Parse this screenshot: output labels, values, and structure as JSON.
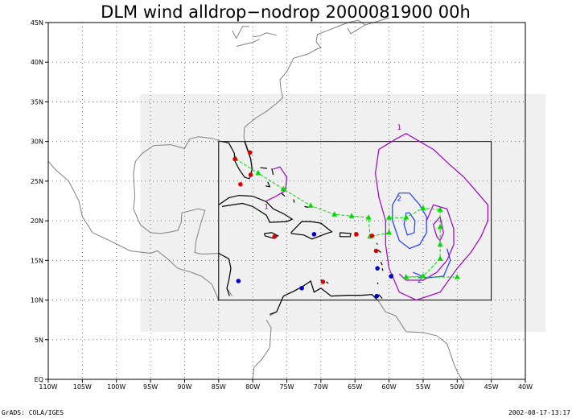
{
  "title": "DLM wind alldrop−nodrop 2000081900 00h",
  "footer": {
    "left": "GrADS: COLA/IGES",
    "right": "2002-08-17-13:17"
  },
  "axes": {
    "lon_range": [
      -110,
      -40
    ],
    "lat_range": [
      0,
      45
    ],
    "x_ticks": [
      "110W",
      "105W",
      "100W",
      "95W",
      "90W",
      "85W",
      "80W",
      "75W",
      "70W",
      "65W",
      "60W",
      "55W",
      "50W",
      "45W",
      "40W"
    ],
    "y_ticks": [
      "EQ",
      "5N",
      "10N",
      "15N",
      "20N",
      "25N",
      "30N",
      "35N",
      "40N",
      "45N"
    ],
    "grid": "dotted"
  },
  "contours": [
    {
      "label": "1",
      "color": "#a000c8"
    },
    {
      "label": "2",
      "color": "#1e3cff"
    },
    {
      "label": "2",
      "color": "#1e3cff"
    },
    {
      "label": "1",
      "color": "#a000c8"
    }
  ],
  "colors": {
    "coast": "#808080",
    "inner_coast": "#000000",
    "track": "#00dc00",
    "shade": "#f0f0f0",
    "red_marker": "#dc0000",
    "blue_marker": "#0000c8"
  },
  "track_points": [
    [
      -82.5,
      27.8
    ],
    [
      -79.2,
      26.0
    ],
    [
      -75.5,
      24.0
    ],
    [
      -71.5,
      21.9
    ],
    [
      -68.0,
      20.8
    ],
    [
      -65.5,
      20.6
    ],
    [
      -63.0,
      20.4
    ],
    [
      -62.8,
      18.0
    ],
    [
      -60.0,
      18.5
    ],
    [
      -60.0,
      20.4
    ],
    [
      -57.5,
      20.4
    ],
    [
      -55.0,
      21.6
    ],
    [
      -52.5,
      21.4
    ],
    [
      -52.5,
      19.2
    ],
    [
      -52.5,
      17.0
    ],
    [
      -52.5,
      15.2
    ],
    [
      -55.0,
      13.0
    ],
    [
      -57.5,
      12.9
    ],
    [
      -50.0,
      12.9
    ]
  ],
  "red_markers": [
    [
      -80.4,
      28.6
    ],
    [
      -82.6,
      27.8
    ],
    [
      -80.3,
      25.8
    ],
    [
      -81.8,
      24.6
    ],
    [
      -64.8,
      18.3
    ],
    [
      -62.5,
      18.1
    ],
    [
      -76.8,
      18.0
    ],
    [
      -61.9,
      16.2
    ],
    [
      -69.7,
      12.3
    ]
  ],
  "blue_markers": [
    [
      -71.0,
      18.3
    ],
    [
      -61.7,
      14.0
    ],
    [
      -59.7,
      13.0
    ],
    [
      -72.8,
      11.5
    ],
    [
      -82.1,
      12.4
    ],
    [
      -61.8,
      10.5
    ]
  ]
}
